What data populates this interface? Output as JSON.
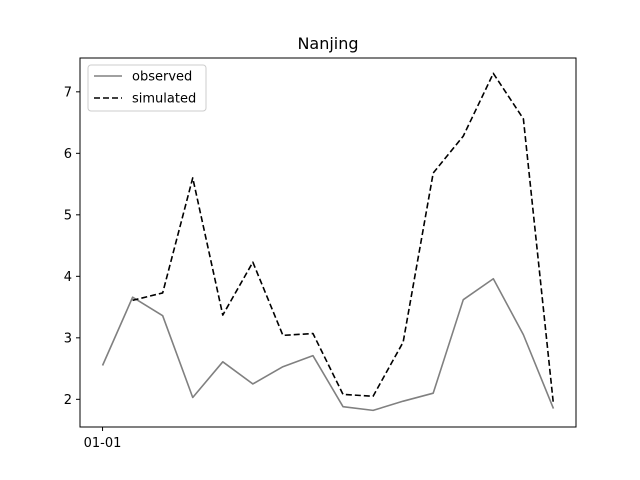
{
  "chart_data": {
    "type": "line",
    "title": "Nanjing",
    "xlabel": "",
    "ylabel": "",
    "x_tick_labels": [
      "01-01"
    ],
    "x_tick_index": [
      0
    ],
    "y_ticks": [
      2,
      3,
      4,
      5,
      6,
      7
    ],
    "ylim": [
      1.55,
      7.55
    ],
    "xlim": [
      -0.75,
      15.75
    ],
    "grid": false,
    "legend_position": "upper-left",
    "series": [
      {
        "name": "observed",
        "color": "#808080",
        "style": "solid",
        "x": [
          0,
          1,
          2,
          3,
          4,
          5,
          6,
          7,
          8,
          9,
          10,
          11,
          12,
          13,
          14,
          15
        ],
        "values": [
          2.55,
          3.66,
          3.36,
          2.03,
          2.61,
          2.25,
          2.53,
          2.71,
          1.88,
          1.82,
          1.97,
          2.1,
          3.62,
          3.96,
          3.05,
          1.85
        ]
      },
      {
        "name": "simulated",
        "color": "#000000",
        "style": "dashed",
        "x": [
          1,
          2,
          3,
          4,
          5,
          6,
          7,
          8,
          9,
          10,
          11,
          12,
          13,
          14,
          15
        ],
        "values": [
          3.61,
          3.73,
          5.6,
          3.37,
          4.23,
          3.04,
          3.07,
          2.08,
          2.05,
          2.93,
          5.68,
          6.28,
          7.3,
          6.56,
          1.92
        ]
      }
    ]
  }
}
